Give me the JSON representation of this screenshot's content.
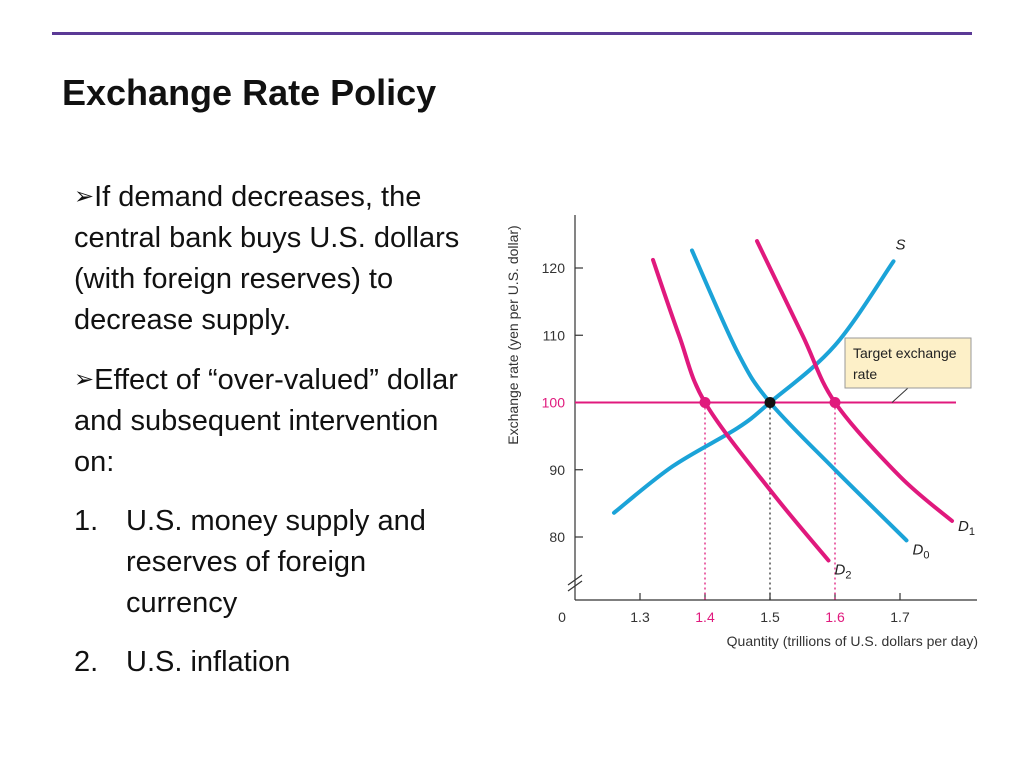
{
  "slide": {
    "title": "Exchange Rate Policy",
    "bullets": [
      {
        "arrow": "➢",
        "text": "If demand decreases, the central bank buys U.S. dollars (with foreign reserves) to decrease supply."
      },
      {
        "arrow": "➢",
        "text": "Effect of “over-valued” dollar and subsequent intervention on:"
      }
    ],
    "numbered": [
      {
        "num": "1.",
        "text": "U.S. money supply and reserves of foreign currency"
      },
      {
        "num": "2.",
        "text": "U.S. inflation"
      }
    ]
  },
  "colors": {
    "accent_rule": "#5b3a96",
    "supply": "#1ba3d8",
    "demand_shifted": "#e0197d",
    "target_line": "#e0197d",
    "callout_bg": "#fdf0c8"
  },
  "chart_data": {
    "type": "line",
    "xlabel": "Quantity (trillions of U.S. dollars per day)",
    "ylabel": "Exchange rate (yen per U.S. dollar)",
    "x_origin_label": "0",
    "x_ticks": [
      {
        "value": 1.3,
        "label": "1.3",
        "color": "#333333"
      },
      {
        "value": 1.4,
        "label": "1.4",
        "color": "#e0197d"
      },
      {
        "value": 1.5,
        "label": "1.5",
        "color": "#333333"
      },
      {
        "value": 1.6,
        "label": "1.6",
        "color": "#e0197d"
      },
      {
        "value": 1.7,
        "label": "1.7",
        "color": "#333333"
      }
    ],
    "y_ticks": [
      {
        "value": 80,
        "label": "80",
        "color": "#333333"
      },
      {
        "value": 90,
        "label": "90",
        "color": "#333333"
      },
      {
        "value": 100,
        "label": "100",
        "color": "#e0197d"
      },
      {
        "value": 110,
        "label": "110",
        "color": "#333333"
      },
      {
        "value": 120,
        "label": "120",
        "color": "#333333"
      }
    ],
    "xlim": [
      1.2,
      1.8
    ],
    "ylim": [
      72,
      128
    ],
    "axis_break": true,
    "series": [
      {
        "name": "S",
        "label_main": "S",
        "label_sub": "",
        "color": "#1ba3d8",
        "points": [
          [
            1.26,
            83.6
          ],
          [
            1.35,
            90.5
          ],
          [
            1.45,
            96.2
          ],
          [
            1.5,
            100
          ],
          [
            1.6,
            108.5
          ],
          [
            1.69,
            121
          ]
        ]
      },
      {
        "name": "D0",
        "label_main": "D",
        "label_sub": "0",
        "color": "#1ba3d8",
        "points": [
          [
            1.38,
            122.6
          ],
          [
            1.45,
            107.5
          ],
          [
            1.5,
            100
          ],
          [
            1.6,
            90
          ],
          [
            1.71,
            79.5
          ]
        ]
      },
      {
        "name": "D1",
        "label_main": "D",
        "label_sub": "1",
        "color": "#e0197d",
        "points": [
          [
            1.48,
            124
          ],
          [
            1.55,
            110
          ],
          [
            1.6,
            100
          ],
          [
            1.7,
            89
          ],
          [
            1.78,
            82.4
          ]
        ]
      },
      {
        "name": "D2",
        "label_main": "D",
        "label_sub": "2",
        "color": "#e0197d",
        "points": [
          [
            1.32,
            121.2
          ],
          [
            1.36,
            110
          ],
          [
            1.4,
            100
          ],
          [
            1.5,
            87
          ],
          [
            1.59,
            76.5
          ]
        ]
      }
    ],
    "target": {
      "value": 100,
      "x_from": 1.2,
      "x_to": 1.78,
      "color": "#e0197d",
      "label_line1": "Target exchange",
      "label_line2": "rate"
    },
    "points": [
      {
        "x": 1.4,
        "y": 100,
        "color": "#e0197d"
      },
      {
        "x": 1.5,
        "y": 100,
        "color": "#111111"
      },
      {
        "x": 1.6,
        "y": 100,
        "color": "#e0197d"
      }
    ],
    "dropped_lines": [
      {
        "x": 1.4,
        "y": 100,
        "color": "#e0197d"
      },
      {
        "x": 1.5,
        "y": 100,
        "color": "#333333"
      },
      {
        "x": 1.6,
        "y": 100,
        "color": "#e0197d"
      }
    ],
    "grid": false,
    "legend": "none"
  }
}
